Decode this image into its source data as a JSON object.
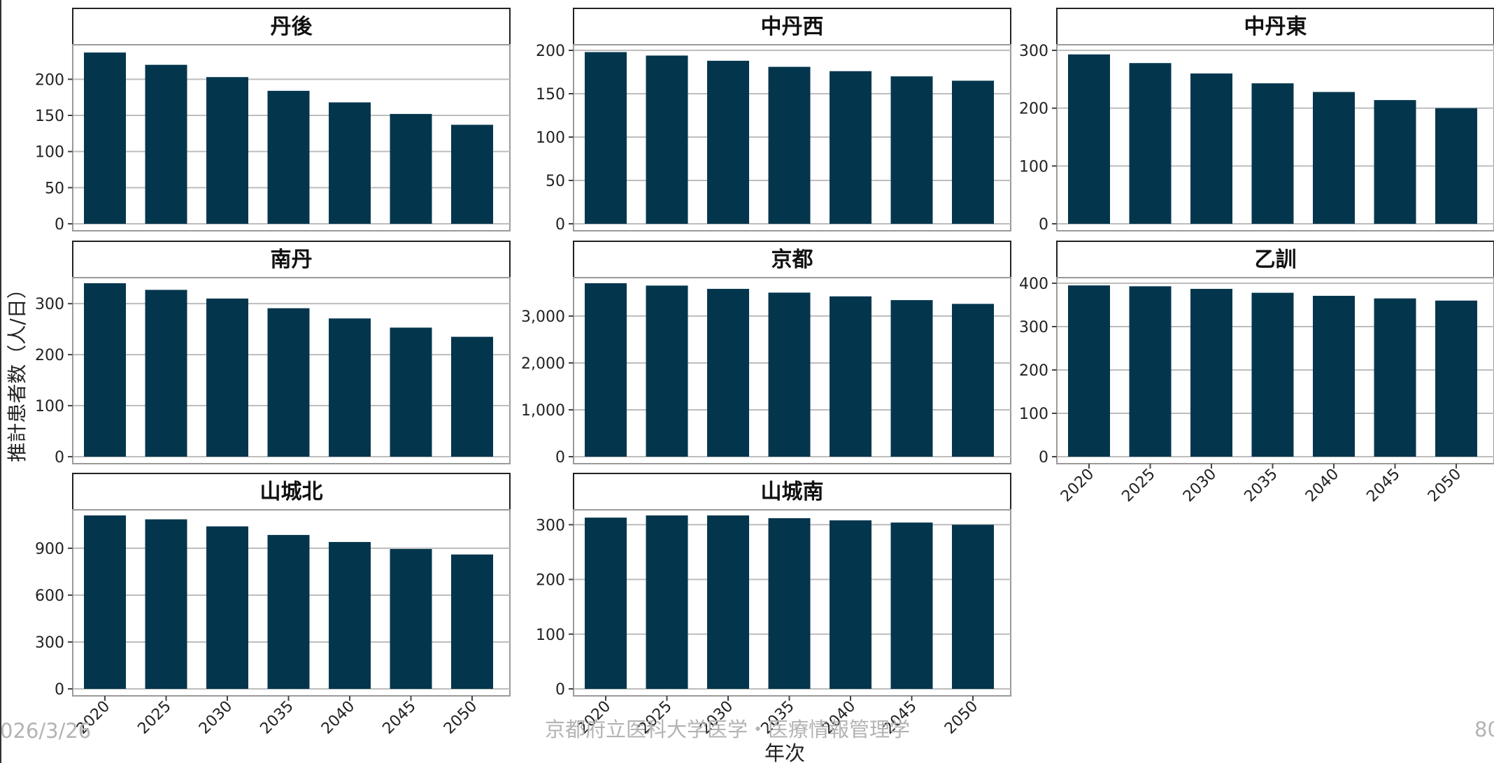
{
  "chart_data": {
    "type": "bar",
    "layout": "facet-grid-3-columns",
    "xlabel": "年次",
    "ylabel": "推計患者数（人/日）",
    "categories": [
      "2020",
      "2025",
      "2030",
      "2035",
      "2040",
      "2045",
      "2050"
    ],
    "bar_color": "#03364d",
    "grid": true,
    "panels": [
      {
        "title": "丹後",
        "values": [
          237,
          220,
          203,
          184,
          168,
          152,
          137
        ],
        "ylim": [
          0,
          240
        ],
        "yticks": [
          0,
          50,
          100,
          150,
          200
        ],
        "yticklabels": [
          "0",
          "50",
          "100",
          "150",
          "200"
        ]
      },
      {
        "title": "中丹西",
        "values": [
          198,
          194,
          188,
          181,
          176,
          170,
          165
        ],
        "ylim": [
          0,
          200
        ],
        "yticks": [
          0,
          50,
          100,
          150,
          200
        ],
        "yticklabels": [
          "0",
          "50",
          "100",
          "150",
          "200"
        ]
      },
      {
        "title": "中丹東",
        "values": [
          293,
          278,
          260,
          243,
          228,
          214,
          200
        ],
        "ylim": [
          0,
          300
        ],
        "yticks": [
          0,
          100,
          200,
          300
        ],
        "yticklabels": [
          "0",
          "100",
          "200",
          "300"
        ]
      },
      {
        "title": "南丹",
        "values": [
          340,
          327,
          310,
          291,
          271,
          253,
          235
        ],
        "ylim": [
          0,
          340
        ],
        "yticks": [
          0,
          100,
          200,
          300
        ],
        "yticklabels": [
          "0",
          "100",
          "200",
          "300"
        ]
      },
      {
        "title": "京都",
        "values": [
          3700,
          3650,
          3580,
          3500,
          3420,
          3340,
          3260
        ],
        "ylim": [
          0,
          3700
        ],
        "yticks": [
          0,
          1000,
          2000,
          3000
        ],
        "yticklabels": [
          "0",
          "1,000",
          "2,000",
          "3,000"
        ]
      },
      {
        "title": "乙訓",
        "values": [
          395,
          393,
          387,
          378,
          371,
          365,
          360
        ],
        "ylim": [
          0,
          400
        ],
        "yticks": [
          0,
          100,
          200,
          300,
          400
        ],
        "yticklabels": [
          "0",
          "100",
          "200",
          "300",
          "400"
        ]
      },
      {
        "title": "山城北",
        "values": [
          1110,
          1085,
          1040,
          985,
          940,
          895,
          860
        ],
        "ylim": [
          0,
          1110
        ],
        "yticks": [
          0,
          300,
          600,
          900
        ],
        "yticklabels": [
          "0",
          "300",
          "600",
          "900"
        ]
      },
      {
        "title": "山城南",
        "values": [
          313,
          317,
          317,
          312,
          308,
          304,
          300
        ],
        "ylim": [
          0,
          317
        ],
        "yticks": [
          0,
          100,
          200,
          300
        ],
        "yticklabels": [
          "0",
          "100",
          "200",
          "300"
        ]
      }
    ]
  },
  "footer": {
    "date": "026/3/26",
    "affiliation": "京都府立医科大学医学・医療情報管理学",
    "page": "80"
  }
}
